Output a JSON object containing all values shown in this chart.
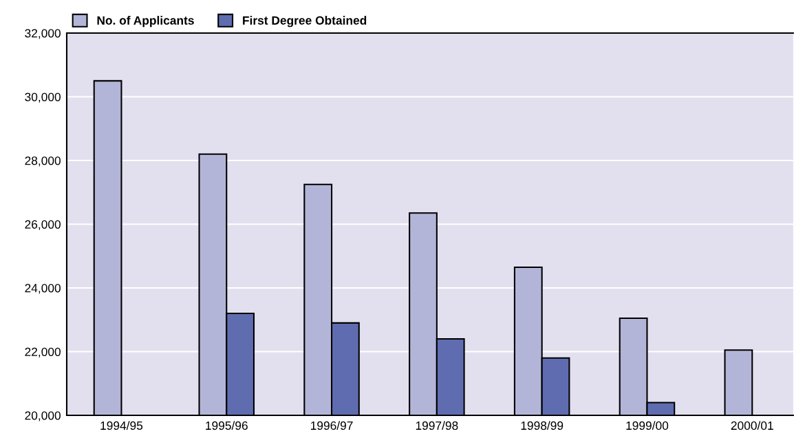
{
  "chart_data": {
    "type": "bar",
    "categories": [
      "1994/95",
      "1995/96",
      "1996/97",
      "1997/98",
      "1998/99",
      "1999/00",
      "2000/01"
    ],
    "series": [
      {
        "name": "No. of Applicants",
        "color": "#b3b5d8",
        "values": [
          30500,
          28200,
          27250,
          26350,
          24650,
          23050,
          22050
        ]
      },
      {
        "name": "First Degree Obtained",
        "color": "#5f6db0",
        "values": [
          null,
          23200,
          22900,
          22400,
          21800,
          20400,
          null
        ]
      }
    ],
    "ylim": [
      20000,
      32000
    ],
    "yticks": [
      {
        "value": 20000,
        "label": "20,000"
      },
      {
        "value": 22000,
        "label": "22,000"
      },
      {
        "value": 24000,
        "label": "24,000"
      },
      {
        "value": 26000,
        "label": "26,000"
      },
      {
        "value": 28000,
        "label": "28,000"
      },
      {
        "value": 30000,
        "label": "30,000"
      },
      {
        "value": 32000,
        "label": "32,000"
      }
    ],
    "grid": "y",
    "legend": "top left"
  }
}
